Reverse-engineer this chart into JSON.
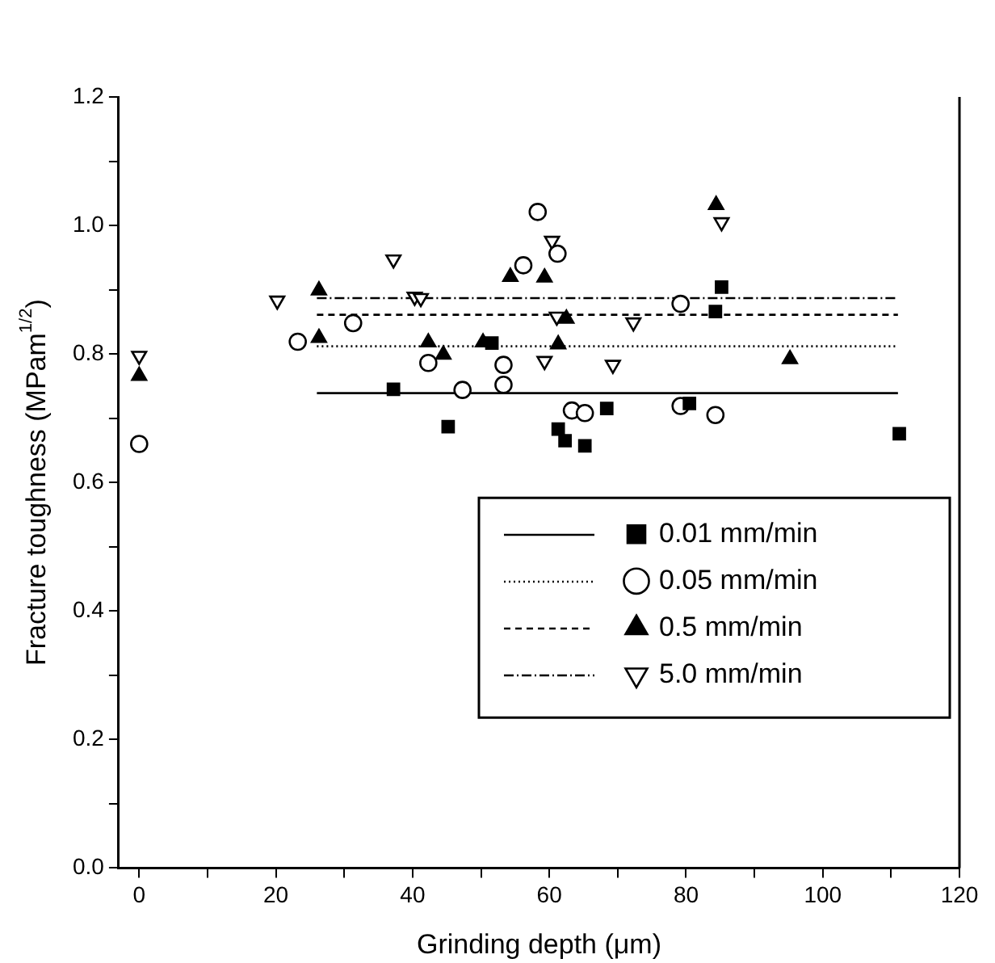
{
  "chart_data": {
    "type": "scatter",
    "xlabel": "Grinding depth (μm)",
    "ylabel": "Fracture toughness (MPam$^{1/2}$)",
    "xlim": [
      -3,
      120
    ],
    "xticks": [
      0,
      {
        "value": 10,
        "label": null
      },
      20,
      {
        "value": 30,
        "label": null
      },
      40,
      {
        "value": 50,
        "label": null
      },
      60,
      {
        "value": 70,
        "label": null
      },
      80,
      {
        "value": 90,
        "label": null
      },
      100,
      {
        "value": 110,
        "label": null
      },
      120
    ],
    "ylim": [
      0,
      1.2
    ],
    "yticks": [
      {
        "value": 0,
        "label": "0.0"
      },
      {
        "value": 0.1,
        "label": null
      },
      0.2,
      {
        "value": 0.3,
        "label": null
      },
      0.4,
      {
        "value": 0.5,
        "label": null
      },
      0.6,
      {
        "value": 0.7,
        "label": null
      },
      0.8,
      {
        "value": 0.9,
        "label": null
      },
      {
        "value": 1.0,
        "label": "1.0"
      },
      {
        "value": 1.1,
        "label": null
      },
      {
        "value": 1.2,
        "label": "1.2"
      }
    ],
    "grid": false,
    "legend": "bottom right",
    "series": [
      {
        "name": "0.01 mm/min",
        "color": "#000000",
        "marker": "square",
        "x": [
          37.2,
          45.2,
          51.6,
          61.3,
          62.3,
          65.2,
          68.4,
          80.5,
          84.3,
          85.2,
          111.2
        ],
        "values": [
          0.745,
          0.687,
          0.817,
          0.683,
          0.665,
          0.657,
          0.715,
          0.723,
          0.866,
          0.904,
          0.676
        ]
      },
      {
        "name": "0.05 mm/min",
        "color": "#000000",
        "marker": "circle",
        "x": [
          0,
          23.2,
          31.3,
          42.3,
          47.3,
          53.3,
          53.3,
          56.2,
          58.3,
          61.2,
          63.3,
          65.2,
          79.2,
          79.2,
          84.3
        ],
        "values": [
          0.66,
          0.819,
          0.848,
          0.786,
          0.744,
          0.783,
          0.752,
          0.938,
          1.021,
          0.956,
          0.712,
          0.708,
          0.719,
          0.878,
          0.705
        ]
      },
      {
        "name": "0.5 mm/min",
        "color": "#000000",
        "marker": "triangle",
        "x": [
          0,
          26.3,
          26.3,
          42.3,
          44.5,
          50.3,
          54.3,
          59.3,
          62.5,
          61.3,
          84.4,
          95.2
        ],
        "values": [
          0.766,
          0.899,
          0.825,
          0.818,
          0.799,
          0.818,
          0.92,
          0.919,
          0.855,
          0.815,
          1.032,
          0.792
        ]
      },
      {
        "name": "5.0 mm/min",
        "color": "#000000",
        "marker": "triangle-down",
        "x": [
          0,
          20.2,
          37.2,
          40.3,
          41.2,
          60.4,
          61.1,
          59.3,
          69.3,
          72.3,
          85.2
        ],
        "values": [
          0.797,
          0.883,
          0.947,
          0.889,
          0.887,
          0.976,
          0.858,
          0.789,
          0.783,
          0.849,
          1.005
        ]
      },
      {
        "type": "line",
        "color": "#000000",
        "line_style": "solid",
        "x": [
          26,
          111
        ],
        "values": [
          0.739,
          0.739
        ]
      },
      {
        "type": "line",
        "color": "#000000",
        "line_style": "dotted",
        "x": [
          26,
          111
        ],
        "values": [
          0.812,
          0.812
        ]
      },
      {
        "type": "line",
        "color": "#000000",
        "line_style": "dashed",
        "x": [
          26,
          111
        ],
        "values": [
          0.861,
          0.861
        ]
      },
      {
        "type": "line",
        "color": "#000000",
        "line_style": "dashdot",
        "x": [
          26,
          111
        ],
        "values": [
          0.887,
          0.887
        ]
      }
    ]
  }
}
